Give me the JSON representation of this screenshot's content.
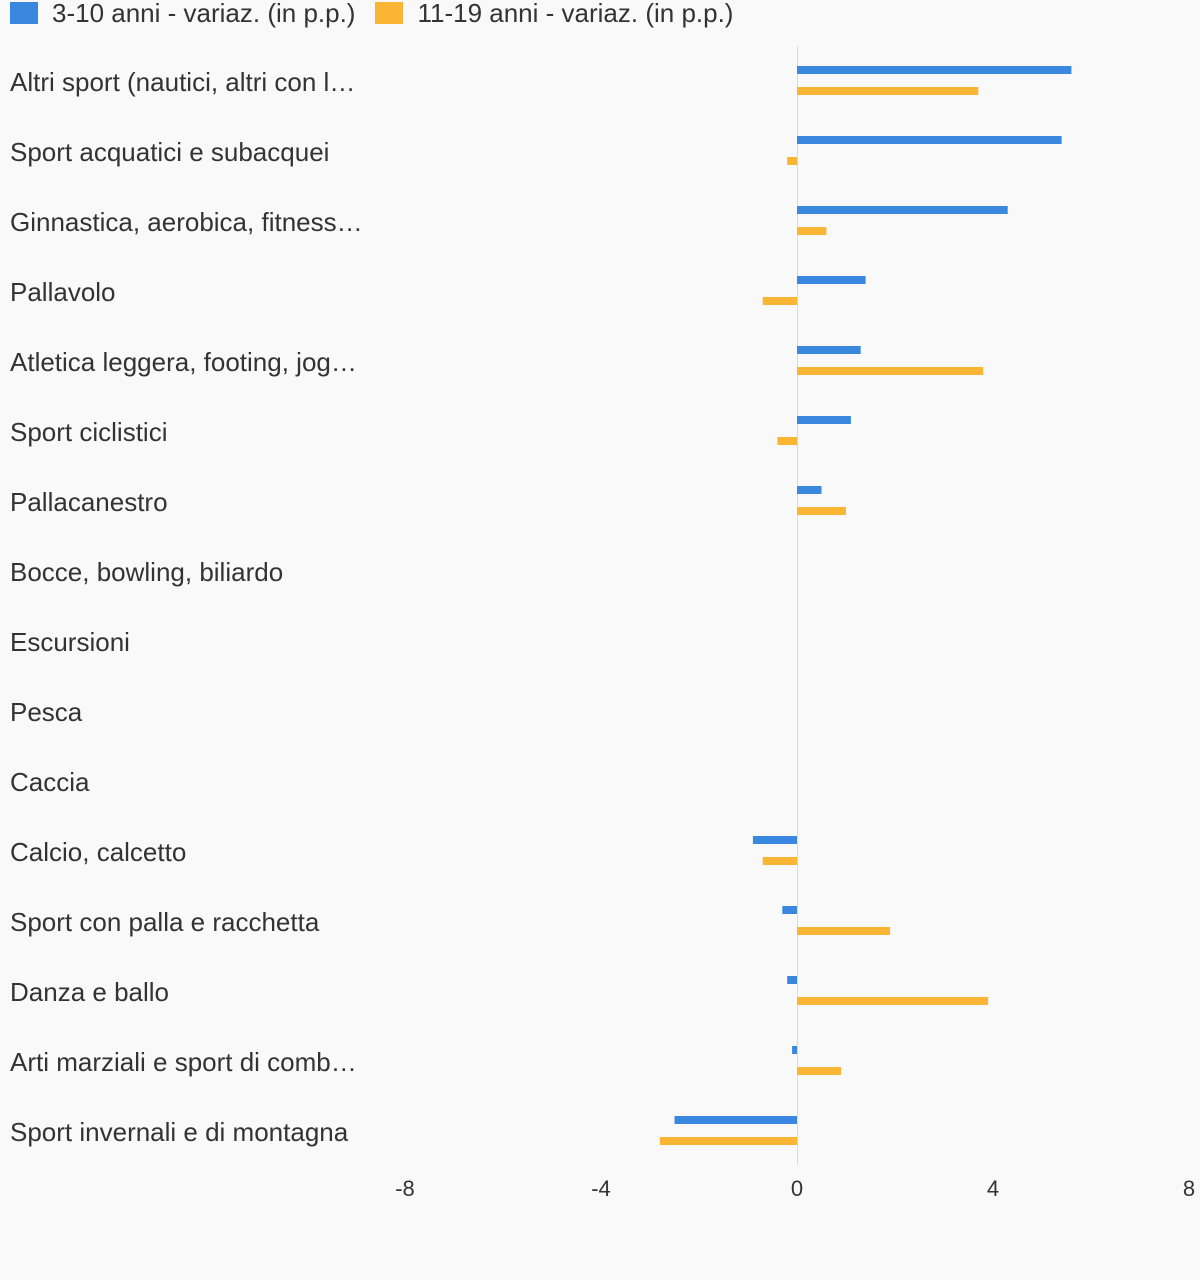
{
  "chart_data": {
    "type": "bar",
    "orientation": "horizontal",
    "categories": [
      "Altri sport (nautici, altri con l…",
      "Sport acquatici e subacquei",
      "Ginnastica, aerobica, fitness…",
      "Pallavolo",
      "Atletica leggera, footing, jog…",
      "Sport ciclistici",
      "Pallacanestro",
      "Bocce, bowling, biliardo",
      "Escursioni",
      "Pesca",
      "Caccia",
      "Calcio, calcetto",
      "Sport con palla e racchetta",
      "Danza e ballo",
      "Arti marziali e sport di comb…",
      "Sport invernali e di montagna"
    ],
    "series": [
      {
        "name": "3-10 anni - variaz. (in p.p.)",
        "color": "#3a87e0",
        "values": [
          5.6,
          5.4,
          4.3,
          1.4,
          1.3,
          1.1,
          0.5,
          0,
          0,
          0,
          0,
          -0.9,
          -0.3,
          -0.2,
          -0.1,
          -2.5
        ]
      },
      {
        "name": "11-19 anni - variaz. (in p.p.)",
        "color": "#fbb535",
        "values": [
          3.7,
          -0.2,
          0.6,
          -0.7,
          3.8,
          -0.4,
          1.0,
          0,
          0,
          0,
          0,
          -0.7,
          1.9,
          3.9,
          0.9,
          -2.8
        ]
      }
    ],
    "x_ticks": [
      "-8",
      "-4",
      "0",
      "4",
      "8"
    ],
    "xlim": [
      -8,
      8
    ],
    "grid": false,
    "legend_position": "top-left"
  }
}
